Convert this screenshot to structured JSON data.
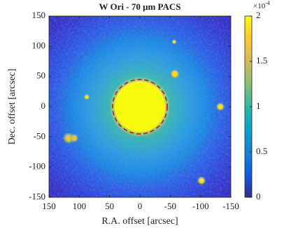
{
  "chart_data": {
    "type": "image",
    "title": "W Ori - 70 μm PACS",
    "xlabel": "R.A. offset [arcsec]",
    "ylabel": "Dec. offset [arcsec]",
    "xlim": [
      150,
      -150
    ],
    "ylim": [
      -150,
      150
    ],
    "xticks": [
      150,
      100,
      50,
      0,
      -50,
      -100,
      -150
    ],
    "yticks": [
      -150,
      -100,
      -50,
      0,
      50,
      100,
      150
    ],
    "clim": [
      0,
      0.0002
    ],
    "cticks": [
      0,
      {
        "value": 5e-05,
        "label": "0.5"
      },
      {
        "value": 0.0001,
        "label": "1"
      },
      {
        "value": 0.00015,
        "label": "1.5"
      },
      {
        "value": 0.0002,
        "label": "2"
      }
    ],
    "colorbar_multiplier": {
      "base": "×10",
      "exponent": "-4"
    },
    "colormap": [
      "#352a87",
      "#0f5cdd",
      "#1481d6",
      "#06a4ca",
      "#2eb7a4",
      "#87bf77",
      "#d1bb59",
      "#fec832",
      "#f9fb0e"
    ],
    "circle": {
      "x": 0,
      "y": 0,
      "r": 45,
      "color": "#c0182a"
    }
  }
}
